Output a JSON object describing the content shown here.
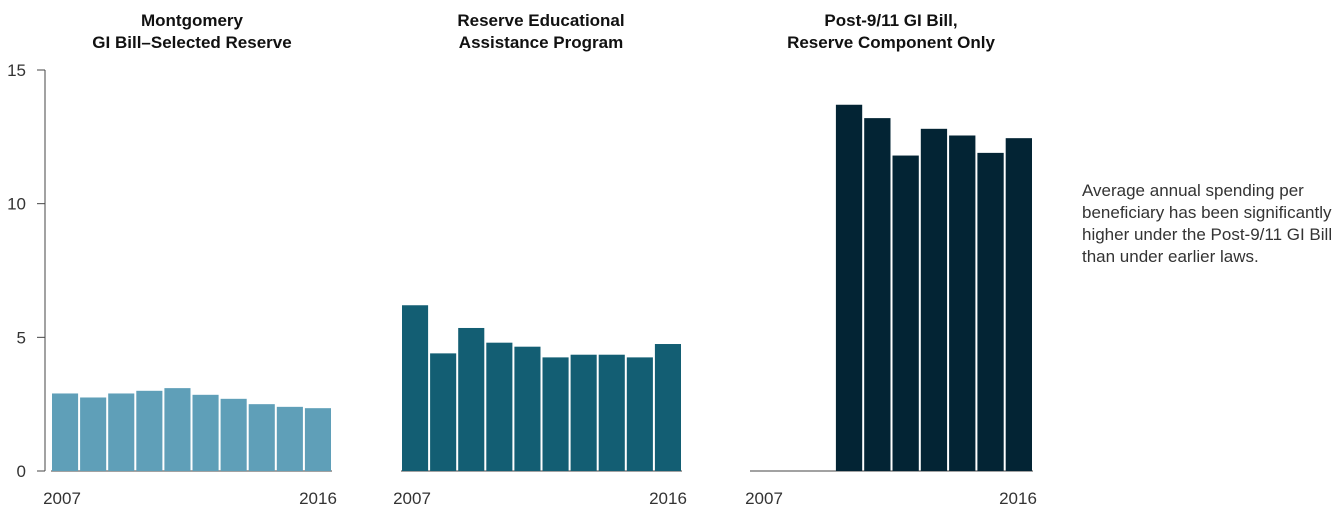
{
  "chart_data": {
    "type": "bar",
    "y_ticks": [
      0,
      5,
      10,
      15
    ],
    "ylim": [
      0,
      15
    ],
    "grid": false,
    "panels": [
      {
        "title_lines": [
          "Montgomery",
          "GI Bill–Selected Reserve"
        ],
        "color": "#5f9fb8",
        "x": [
          2007,
          2008,
          2009,
          2010,
          2011,
          2012,
          2013,
          2014,
          2015,
          2016
        ],
        "values": [
          2.9,
          2.75,
          2.9,
          3.0,
          3.1,
          2.85,
          2.7,
          2.5,
          2.4,
          2.35
        ],
        "x_tick_labels": [
          "2007",
          "2016"
        ]
      },
      {
        "title_lines": [
          "Reserve Educational",
          "Assistance Program"
        ],
        "color": "#135e73",
        "x": [
          2007,
          2008,
          2009,
          2010,
          2011,
          2012,
          2013,
          2014,
          2015,
          2016
        ],
        "values": [
          6.2,
          4.4,
          5.35,
          4.8,
          4.65,
          4.25,
          4.35,
          4.35,
          4.25,
          4.75
        ],
        "x_tick_labels": [
          "2007",
          "2016"
        ]
      },
      {
        "title_lines": [
          "Post-9/11 GI Bill,",
          "Reserve Component Only"
        ],
        "color": "#032434",
        "x": [
          2007,
          2008,
          2009,
          2010,
          2011,
          2012,
          2013,
          2014,
          2015,
          2016
        ],
        "values": [
          0,
          0,
          0,
          13.7,
          13.2,
          11.8,
          12.8,
          12.55,
          11.9,
          12.45
        ],
        "x_tick_labels": [
          "2007",
          "2016"
        ]
      }
    ]
  },
  "annotation": "Average annual spending per beneficiary has been significantly higher under the Post-9/11 GI Bill than under earlier laws."
}
